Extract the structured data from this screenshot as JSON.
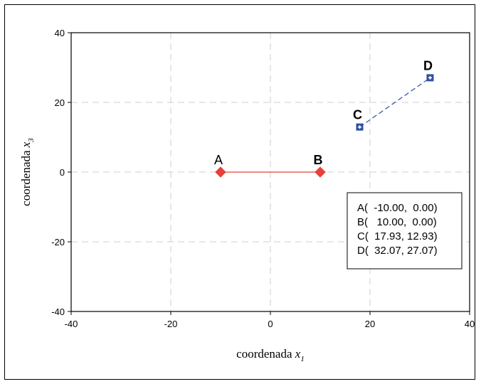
{
  "chart_data": {
    "type": "scatter",
    "title": "",
    "xlabel": {
      "text": "coordenada ",
      "var": "x",
      "sub": "1"
    },
    "ylabel": {
      "text": "coordenada ",
      "var": "x",
      "sub": "3"
    },
    "xlim": [
      -40,
      40
    ],
    "ylim": [
      -40,
      40
    ],
    "xticks": [
      "-40",
      "-20",
      "0",
      "20",
      "40"
    ],
    "yticks": [
      "-40",
      "-20",
      "0",
      "20",
      "40"
    ],
    "xtick_values": [
      -40,
      -20,
      0,
      20,
      40
    ],
    "ytick_values": [
      -40,
      -20,
      0,
      20,
      40
    ],
    "grid": true,
    "legend_position": "right-middle",
    "series": [
      {
        "color": "#e8403a",
        "marker": "diamond",
        "line_style": "solid",
        "points": [
          {
            "label": "A",
            "x": -10.0,
            "y": 0.0
          },
          {
            "label": "B",
            "x": 10.0,
            "y": 0.0
          }
        ]
      },
      {
        "color": "#2f4fa0",
        "marker": "square-plus",
        "line_style": "dashed",
        "points": [
          {
            "label": "C",
            "x": 17.93,
            "y": 12.93
          },
          {
            "label": "D",
            "x": 32.07,
            "y": 27.07
          }
        ]
      }
    ],
    "annotations": [
      "A(  -10.00,  0.00)",
      "B(   10.00,  0.00)",
      "C(  17.93, 12.93)",
      "D(  32.07, 27.07)"
    ]
  }
}
